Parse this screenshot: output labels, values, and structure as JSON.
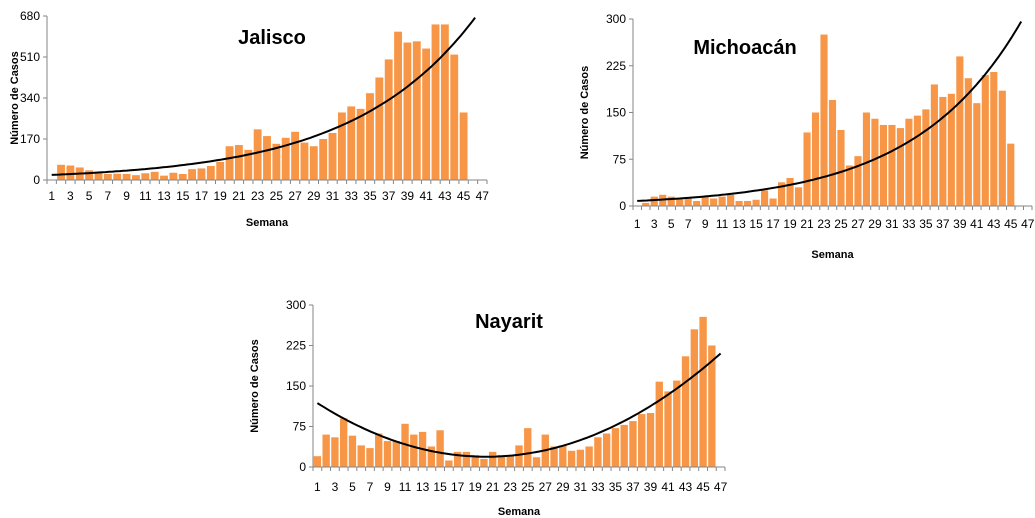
{
  "chart_data": [
    {
      "type": "bar",
      "title": "Jalisco",
      "xlabel": "Semana",
      "ylabel": "Número de Casos",
      "ylim": [
        0,
        680
      ],
      "yticks": [
        0,
        170,
        340,
        510,
        680
      ],
      "x": [
        1,
        2,
        3,
        4,
        5,
        6,
        7,
        8,
        9,
        10,
        11,
        12,
        13,
        14,
        15,
        16,
        17,
        18,
        19,
        20,
        21,
        22,
        23,
        24,
        25,
        26,
        27,
        28,
        29,
        30,
        31,
        32,
        33,
        34,
        35,
        36,
        37,
        38,
        39,
        40,
        41,
        42,
        43,
        44,
        45,
        46,
        47
      ],
      "xticklabels": [
        "1",
        "3",
        "5",
        "7",
        "9",
        "11",
        "13",
        "15",
        "17",
        "19",
        "21",
        "23",
        "25",
        "27",
        "29",
        "31",
        "33",
        "35",
        "37",
        "39",
        "41",
        "43",
        "45",
        "47"
      ],
      "values": [
        0,
        63,
        60,
        52,
        40,
        30,
        25,
        26,
        25,
        20,
        28,
        34,
        18,
        30,
        25,
        45,
        48,
        58,
        75,
        140,
        145,
        125,
        210,
        182,
        150,
        175,
        200,
        155,
        140,
        170,
        195,
        280,
        305,
        295,
        360,
        425,
        500,
        615,
        570,
        575,
        545,
        645,
        645,
        520,
        280,
        0,
        0
      ],
      "trendline": {
        "type": "exponential",
        "color": "#000000"
      },
      "bar_color": "#f79646"
    },
    {
      "type": "bar",
      "title": "Michoacán",
      "xlabel": "Semana",
      "ylabel": "Número de Casos",
      "ylim": [
        0,
        300
      ],
      "yticks": [
        0,
        75,
        150,
        225,
        300
      ],
      "x": [
        1,
        2,
        3,
        4,
        5,
        6,
        7,
        8,
        9,
        10,
        11,
        12,
        13,
        14,
        15,
        16,
        17,
        18,
        19,
        20,
        21,
        22,
        23,
        24,
        25,
        26,
        27,
        28,
        29,
        30,
        31,
        32,
        33,
        34,
        35,
        36,
        37,
        38,
        39,
        40,
        41,
        42,
        43,
        44,
        45,
        46,
        47
      ],
      "xticklabels": [
        "1",
        "3",
        "5",
        "7",
        "9",
        "11",
        "13",
        "15",
        "17",
        "19",
        "21",
        "23",
        "25",
        "27",
        "29",
        "31",
        "33",
        "35",
        "37",
        "39",
        "41",
        "43",
        "45",
        "47"
      ],
      "values": [
        0,
        5,
        15,
        18,
        15,
        12,
        12,
        8,
        15,
        12,
        15,
        18,
        8,
        8,
        10,
        25,
        12,
        38,
        45,
        30,
        118,
        150,
        275,
        170,
        122,
        65,
        80,
        150,
        140,
        130,
        130,
        125,
        140,
        145,
        155,
        195,
        175,
        180,
        240,
        205,
        165,
        210,
        215,
        185,
        100,
        0,
        0
      ],
      "trendline": {
        "type": "exponential",
        "color": "#000000"
      },
      "bar_color": "#f79646"
    },
    {
      "type": "bar",
      "title": "Nayarit",
      "xlabel": "Semana",
      "ylabel": "Número de Casos",
      "ylim": [
        0,
        300
      ],
      "yticks": [
        0,
        75,
        150,
        225,
        300
      ],
      "x": [
        1,
        2,
        3,
        4,
        5,
        6,
        7,
        8,
        9,
        10,
        11,
        12,
        13,
        14,
        15,
        16,
        17,
        18,
        19,
        20,
        21,
        22,
        23,
        24,
        25,
        26,
        27,
        28,
        29,
        30,
        31,
        32,
        33,
        34,
        35,
        36,
        37,
        38,
        39,
        40,
        41,
        42,
        43,
        44,
        45,
        46,
        47
      ],
      "xticklabels": [
        "1",
        "3",
        "5",
        "7",
        "9",
        "11",
        "13",
        "15",
        "17",
        "19",
        "21",
        "23",
        "25",
        "27",
        "29",
        "31",
        "33",
        "35",
        "37",
        "39",
        "41",
        "43",
        "45",
        "47"
      ],
      "values": [
        20,
        60,
        55,
        90,
        58,
        40,
        35,
        62,
        48,
        48,
        80,
        60,
        65,
        38,
        68,
        12,
        28,
        28,
        22,
        15,
        28,
        22,
        22,
        40,
        72,
        18,
        60,
        38,
        40,
        30,
        32,
        38,
        55,
        62,
        72,
        78,
        85,
        98,
        100,
        158,
        140,
        160,
        205,
        255,
        278,
        225,
        0
      ],
      "trendline": {
        "type": "polynomial",
        "color": "#000000"
      },
      "bar_color": "#f79646"
    }
  ]
}
